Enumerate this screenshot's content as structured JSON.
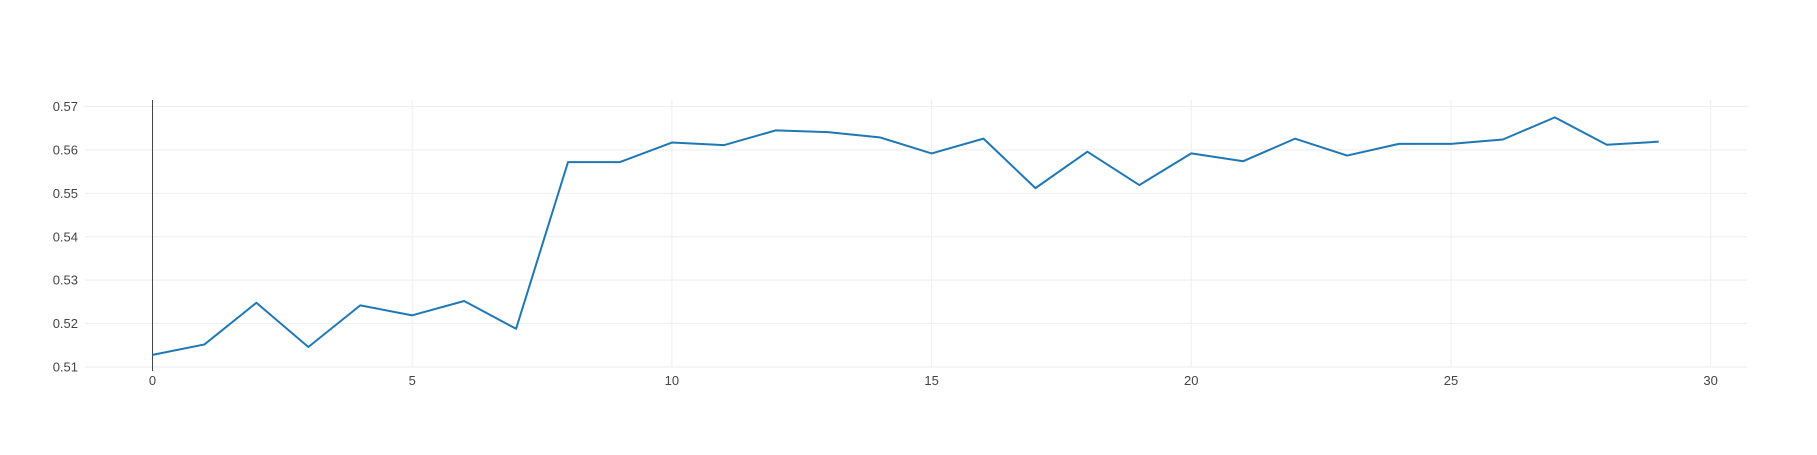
{
  "chart_data": {
    "type": "line",
    "title": "",
    "xlabel": "",
    "ylabel": "",
    "xlim": [
      -1.3,
      30.7
    ],
    "ylim": [
      0.51,
      0.5715
    ],
    "grid": true,
    "x_ticks": [
      0,
      5,
      10,
      15,
      20,
      25,
      30
    ],
    "x_tick_labels": [
      "0",
      "5",
      "10",
      "15",
      "20",
      "25",
      "30"
    ],
    "y_ticks": [
      0.51,
      0.52,
      0.53,
      0.54,
      0.55,
      0.56,
      0.57
    ],
    "y_tick_labels": [
      "0.51",
      "0.52",
      "0.53",
      "0.54",
      "0.55",
      "0.56",
      "0.57"
    ],
    "series": [
      {
        "color": "#1f77b4",
        "x": [
          0,
          1,
          2,
          3,
          4,
          5,
          6,
          7,
          8,
          9,
          10,
          11,
          12,
          13,
          14,
          15,
          16,
          17,
          18,
          19,
          20,
          21,
          22,
          23,
          24,
          25,
          26,
          27,
          28,
          29
        ],
        "values": [
          0.5128,
          0.5152,
          0.5248,
          0.5146,
          0.5242,
          0.5219,
          0.5252,
          0.5188,
          0.5572,
          0.5572,
          0.5617,
          0.5611,
          0.5645,
          0.5641,
          0.5629,
          0.5592,
          0.5626,
          0.5512,
          0.5596,
          0.5519,
          0.5592,
          0.5574,
          0.5626,
          0.5587,
          0.5614,
          0.5614,
          0.5624,
          0.5675,
          0.5612,
          0.5619
        ]
      }
    ]
  },
  "colors": {
    "grid": "#eeeeee",
    "axis_line": "#444444",
    "tick_text": "#444444"
  }
}
